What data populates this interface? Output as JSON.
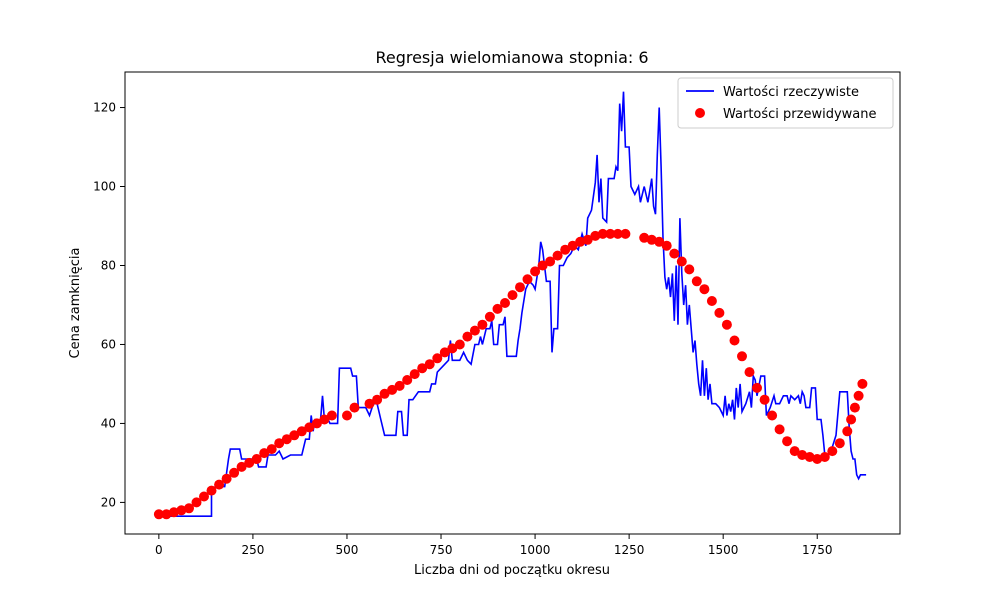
{
  "chart_data": {
    "type": "line",
    "title": "Regresja wielomianowa stopnia: 6",
    "xlabel": "Liczba dni od początku okresu",
    "ylabel": "Cena zamknięcia",
    "xlim": [
      -90,
      1970
    ],
    "ylim": [
      12,
      129
    ],
    "xticks": [
      0,
      250,
      500,
      750,
      1000,
      1250,
      1500,
      1750
    ],
    "yticks": [
      20,
      40,
      60,
      80,
      100,
      120
    ],
    "grid": false,
    "legend": "top-right",
    "series": [
      {
        "name": "Wartości rzeczywiste",
        "kind": "line",
        "color": "#0000ff",
        "points": [
          [
            0,
            17
          ],
          [
            30,
            16.5
          ],
          [
            140,
            16.5
          ],
          [
            140,
            23
          ],
          [
            150,
            24
          ],
          [
            175,
            24
          ],
          [
            185,
            31
          ],
          [
            190,
            33.5
          ],
          [
            215,
            33.5
          ],
          [
            220,
            31
          ],
          [
            260,
            31
          ],
          [
            265,
            29
          ],
          [
            285,
            29
          ],
          [
            290,
            32
          ],
          [
            310,
            32
          ],
          [
            320,
            33
          ],
          [
            330,
            31
          ],
          [
            350,
            32
          ],
          [
            380,
            32
          ],
          [
            390,
            36
          ],
          [
            400,
            36
          ],
          [
            405,
            42
          ],
          [
            410,
            38
          ],
          [
            415,
            41
          ],
          [
            420,
            41
          ],
          [
            425,
            39
          ],
          [
            430,
            41
          ],
          [
            435,
            47
          ],
          [
            440,
            41
          ],
          [
            450,
            41
          ],
          [
            455,
            40
          ],
          [
            475,
            40
          ],
          [
            480,
            54
          ],
          [
            510,
            54
          ],
          [
            515,
            52
          ],
          [
            525,
            52
          ],
          [
            530,
            44
          ],
          [
            550,
            44
          ],
          [
            560,
            42
          ],
          [
            570,
            45
          ],
          [
            580,
            45
          ],
          [
            590,
            41
          ],
          [
            600,
            37
          ],
          [
            630,
            37
          ],
          [
            635,
            43
          ],
          [
            645,
            43
          ],
          [
            650,
            37
          ],
          [
            660,
            37
          ],
          [
            665,
            46
          ],
          [
            675,
            46
          ],
          [
            690,
            48
          ],
          [
            720,
            48
          ],
          [
            725,
            50
          ],
          [
            735,
            50
          ],
          [
            740,
            53
          ],
          [
            760,
            55
          ],
          [
            770,
            56
          ],
          [
            775,
            61
          ],
          [
            780,
            56
          ],
          [
            800,
            56
          ],
          [
            810,
            58
          ],
          [
            820,
            56
          ],
          [
            830,
            55
          ],
          [
            840,
            60
          ],
          [
            850,
            60
          ],
          [
            855,
            62
          ],
          [
            860,
            60
          ],
          [
            870,
            64
          ],
          [
            880,
            64
          ],
          [
            885,
            66
          ],
          [
            890,
            60
          ],
          [
            900,
            60
          ],
          [
            905,
            65
          ],
          [
            915,
            65
          ],
          [
            920,
            67
          ],
          [
            925,
            57
          ],
          [
            950,
            57
          ],
          [
            955,
            61
          ],
          [
            960,
            64
          ],
          [
            965,
            68
          ],
          [
            975,
            74
          ],
          [
            985,
            76
          ],
          [
            995,
            75
          ],
          [
            1000,
            74
          ],
          [
            1010,
            80
          ],
          [
            1015,
            86
          ],
          [
            1020,
            84
          ],
          [
            1030,
            76
          ],
          [
            1040,
            76
          ],
          [
            1045,
            58
          ],
          [
            1050,
            64
          ],
          [
            1060,
            64
          ],
          [
            1065,
            80
          ],
          [
            1075,
            80
          ],
          [
            1085,
            82
          ],
          [
            1095,
            83
          ],
          [
            1105,
            85
          ],
          [
            1115,
            84
          ],
          [
            1125,
            88
          ],
          [
            1135,
            85
          ],
          [
            1140,
            92
          ],
          [
            1150,
            94
          ],
          [
            1160,
            101
          ],
          [
            1165,
            108
          ],
          [
            1170,
            96
          ],
          [
            1175,
            102
          ],
          [
            1180,
            92
          ],
          [
            1190,
            91
          ],
          [
            1195,
            102
          ],
          [
            1210,
            102
          ],
          [
            1215,
            105
          ],
          [
            1220,
            104
          ],
          [
            1225,
            121
          ],
          [
            1230,
            114
          ],
          [
            1235,
            124
          ],
          [
            1240,
            110
          ],
          [
            1250,
            110
          ],
          [
            1255,
            100
          ],
          [
            1265,
            98
          ],
          [
            1275,
            100
          ],
          [
            1280,
            96
          ],
          [
            1285,
            98
          ],
          [
            1290,
            100
          ],
          [
            1300,
            96
          ],
          [
            1310,
            102
          ],
          [
            1315,
            95
          ],
          [
            1320,
            93
          ],
          [
            1325,
            108
          ],
          [
            1330,
            120
          ],
          [
            1335,
            105
          ],
          [
            1340,
            87
          ],
          [
            1345,
            77
          ],
          [
            1350,
            74
          ],
          [
            1355,
            77
          ],
          [
            1360,
            72
          ],
          [
            1365,
            78
          ],
          [
            1370,
            66
          ],
          [
            1375,
            80
          ],
          [
            1380,
            65
          ],
          [
            1385,
            92
          ],
          [
            1390,
            78
          ],
          [
            1395,
            70
          ],
          [
            1400,
            75
          ],
          [
            1405,
            65
          ],
          [
            1410,
            70
          ],
          [
            1420,
            58
          ],
          [
            1425,
            61
          ],
          [
            1430,
            55
          ],
          [
            1435,
            50
          ],
          [
            1440,
            47
          ],
          [
            1445,
            56
          ],
          [
            1450,
            47
          ],
          [
            1455,
            54
          ],
          [
            1460,
            46
          ],
          [
            1465,
            50
          ],
          [
            1470,
            45
          ],
          [
            1480,
            45
          ],
          [
            1490,
            44
          ],
          [
            1500,
            42
          ],
          [
            1505,
            47
          ],
          [
            1510,
            42
          ],
          [
            1515,
            45
          ],
          [
            1520,
            43
          ],
          [
            1525,
            46
          ],
          [
            1530,
            41
          ],
          [
            1535,
            49
          ],
          [
            1540,
            44
          ],
          [
            1545,
            50
          ],
          [
            1550,
            43
          ],
          [
            1555,
            44
          ],
          [
            1560,
            45
          ],
          [
            1570,
            48
          ],
          [
            1575,
            44
          ],
          [
            1580,
            52
          ],
          [
            1585,
            51
          ],
          [
            1590,
            47
          ],
          [
            1600,
            52
          ],
          [
            1610,
            52
          ],
          [
            1615,
            42
          ],
          [
            1625,
            44
          ],
          [
            1635,
            47
          ],
          [
            1640,
            45
          ],
          [
            1650,
            45
          ],
          [
            1660,
            47
          ],
          [
            1670,
            47
          ],
          [
            1675,
            45
          ],
          [
            1680,
            47
          ],
          [
            1690,
            46
          ],
          [
            1700,
            47
          ],
          [
            1705,
            45
          ],
          [
            1710,
            48
          ],
          [
            1715,
            47
          ],
          [
            1720,
            44
          ],
          [
            1730,
            44
          ],
          [
            1735,
            49
          ],
          [
            1745,
            49
          ],
          [
            1750,
            41
          ],
          [
            1760,
            41
          ],
          [
            1765,
            37
          ],
          [
            1770,
            32
          ],
          [
            1780,
            32
          ],
          [
            1790,
            34
          ],
          [
            1800,
            37
          ],
          [
            1810,
            48
          ],
          [
            1830,
            48
          ],
          [
            1835,
            39
          ],
          [
            1840,
            33
          ],
          [
            1845,
            31
          ],
          [
            1850,
            31
          ],
          [
            1855,
            27
          ],
          [
            1860,
            26
          ],
          [
            1865,
            27
          ],
          [
            1880,
            27
          ]
        ]
      },
      {
        "name": "Wartości przewidywane",
        "kind": "scatter",
        "color": "#ff0000",
        "x": [
          0,
          20,
          40,
          60,
          80,
          100,
          120,
          140,
          160,
          180,
          200,
          220,
          240,
          260,
          280,
          300,
          320,
          340,
          360,
          380,
          400,
          420,
          440,
          460,
          500,
          520,
          560,
          580,
          600,
          620,
          640,
          660,
          680,
          700,
          720,
          740,
          760,
          780,
          800,
          820,
          840,
          860,
          880,
          900,
          920,
          940,
          960,
          980,
          1000,
          1020,
          1040,
          1060,
          1080,
          1100,
          1120,
          1140,
          1160,
          1180,
          1200,
          1220,
          1240,
          1290,
          1310,
          1330,
          1350,
          1370,
          1390,
          1410,
          1430,
          1450,
          1470,
          1490,
          1510,
          1530,
          1550,
          1570,
          1590,
          1610,
          1630,
          1650,
          1670,
          1690,
          1710,
          1730,
          1750,
          1770,
          1790,
          1810,
          1830,
          1840,
          1850,
          1860,
          1870
        ],
        "y": [
          17,
          17,
          17.5,
          18,
          18.5,
          20,
          21.5,
          23,
          24.5,
          26,
          27.5,
          29,
          30,
          31,
          32.5,
          33.5,
          35,
          36,
          37,
          38,
          39,
          40,
          41,
          42,
          42,
          44,
          45,
          46,
          47.5,
          48.5,
          49.5,
          51,
          52.5,
          54,
          55,
          56.5,
          58,
          59,
          60,
          62,
          63.5,
          65,
          67,
          69,
          70.5,
          72.5,
          74.5,
          76.5,
          78.5,
          80,
          81,
          82.5,
          84,
          85,
          86,
          86.5,
          87.5,
          88,
          88,
          88,
          88,
          87,
          86.5,
          86,
          85,
          83,
          81,
          79,
          76,
          74,
          71,
          68,
          65,
          61,
          57,
          53,
          49,
          46,
          42,
          38.5,
          35.5,
          33,
          32,
          31.5,
          31,
          31.5,
          33,
          35,
          38,
          41,
          44,
          47,
          50
        ]
      }
    ]
  }
}
